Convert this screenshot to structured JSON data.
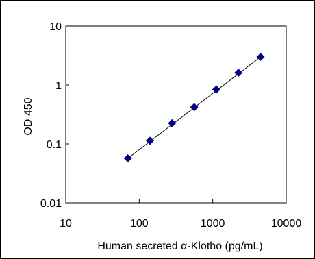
{
  "chart_data": {
    "type": "scatter",
    "xlabel": "Human secreted α-Klotho (pg/mL)",
    "ylabel": "OD 450",
    "x_scale": "log",
    "y_scale": "log",
    "xlim": [
      10,
      10000
    ],
    "ylim": [
      0.01,
      10
    ],
    "x_ticks": [
      "10",
      "100",
      "1000",
      "10000"
    ],
    "y_ticks": [
      "0.01",
      "0.1",
      "1",
      "10"
    ],
    "grid": false,
    "legend": "none",
    "marker_color": "#000080",
    "line_color": "#000000",
    "series": [
      {
        "x": [
          70,
          140,
          280,
          560,
          1120,
          2240,
          4480
        ],
        "y": [
          0.057,
          0.113,
          0.225,
          0.42,
          0.84,
          1.62,
          3.0
        ]
      }
    ],
    "trendline": {
      "x": [
        70,
        4480
      ],
      "y": [
        0.057,
        3.0
      ]
    }
  }
}
